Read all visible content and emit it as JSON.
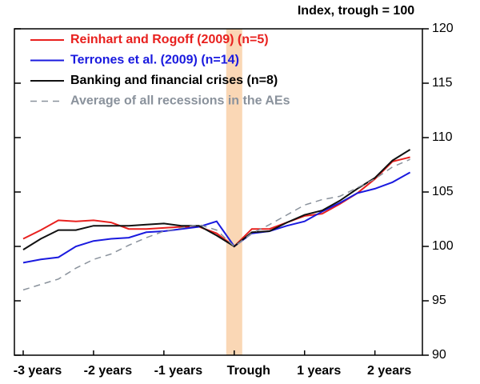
{
  "chart_data": {
    "type": "line",
    "y_label": "Index, trough = 100",
    "x": [
      -12,
      -11,
      -10,
      -9,
      -8,
      -7,
      -6,
      -5,
      -4,
      -3,
      -2,
      -1,
      0,
      1,
      2,
      3,
      4,
      5,
      6,
      7,
      8,
      9,
      10
    ],
    "series": [
      {
        "name": "Reinhart and Rogoff (2009) (n=5)",
        "color": "#e8201e",
        "dash": false,
        "values": [
          100.7,
          101.5,
          102.4,
          102.3,
          102.4,
          102.2,
          101.6,
          101.6,
          101.7,
          101.8,
          101.8,
          101.2,
          100.0,
          101.6,
          101.6,
          102.2,
          102.8,
          103.0,
          103.9,
          104.9,
          106.2,
          107.8,
          108.2
        ]
      },
      {
        "name": "Terrones et al. (2009) (n=14)",
        "color": "#1a1adf",
        "dash": false,
        "values": [
          98.5,
          98.8,
          99.0,
          100.0,
          100.5,
          100.7,
          100.8,
          101.3,
          101.4,
          101.6,
          101.8,
          102.3,
          100.0,
          101.2,
          101.4,
          101.9,
          102.3,
          103.2,
          104.0,
          104.9,
          105.3,
          105.9,
          106.8
        ]
      },
      {
        "name": "Banking and financial crises (n=8)",
        "color": "#111111",
        "dash": false,
        "values": [
          99.7,
          100.7,
          101.5,
          101.5,
          101.9,
          101.9,
          101.9,
          102.0,
          102.1,
          101.9,
          101.9,
          101.0,
          100.0,
          101.3,
          101.4,
          102.2,
          102.9,
          103.3,
          104.2,
          105.3,
          106.3,
          107.9,
          108.9
        ]
      },
      {
        "name": "Average of all recessions in the AEs",
        "color": "#8a929c",
        "dash": true,
        "values": [
          96.0,
          96.5,
          97.0,
          98.0,
          98.8,
          99.3,
          100.1,
          100.8,
          101.4,
          101.7,
          102.0,
          101.5,
          100.0,
          101.2,
          102.0,
          102.9,
          103.8,
          104.3,
          104.6,
          105.4,
          106.2,
          107.3,
          108.0
        ]
      }
    ],
    "xlim": [
      -12.5,
      10.7
    ],
    "xticks": [
      {
        "value": -12,
        "label": "-3 years"
      },
      {
        "value": -8,
        "label": "-2 years"
      },
      {
        "value": -4,
        "label": "-1 years"
      },
      {
        "value": 0,
        "label": "Trough"
      },
      {
        "value": 4,
        "label": "1 years"
      },
      {
        "value": 8,
        "label": "2 years"
      }
    ],
    "ylim": [
      90,
      120
    ],
    "yticks": [
      90,
      95,
      100,
      105,
      110,
      115,
      120
    ],
    "y_axis_side": "right",
    "legend": "upper-left"
  }
}
